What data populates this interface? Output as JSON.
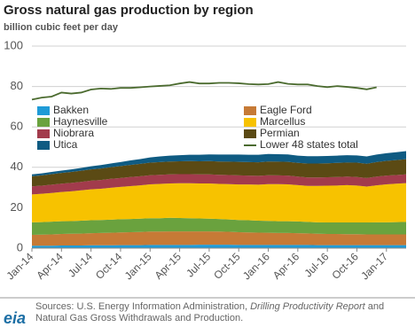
{
  "chart_data": {
    "type": "area",
    "title": "Gross natural gas production by region",
    "subtitle": "billion cubic feet per day",
    "categories": [
      "Jan-14",
      null,
      null,
      "Apr-14",
      null,
      null,
      "Jul-14",
      null,
      null,
      "Oct-14",
      null,
      null,
      "Jan-15",
      null,
      null,
      "Apr-15",
      null,
      null,
      "Jul-15",
      null,
      null,
      "Oct-15",
      null,
      null,
      "Jan-16",
      null,
      null,
      "Apr-16",
      null,
      null,
      "Jul-16",
      null,
      null,
      "Oct-16",
      null,
      null,
      "Jan-17",
      null,
      null
    ],
    "series": [
      {
        "name": "Bakken",
        "color": "#1f9bd7",
        "values": [
          1.2,
          1.2,
          1.2,
          1.3,
          1.3,
          1.3,
          1.4,
          1.4,
          1.4,
          1.5,
          1.5,
          1.5,
          1.6,
          1.6,
          1.6,
          1.6,
          1.6,
          1.7,
          1.7,
          1.7,
          1.7,
          1.6,
          1.6,
          1.6,
          1.6,
          1.6,
          1.6,
          1.6,
          1.6,
          1.5,
          1.5,
          1.5,
          1.5,
          1.5,
          1.5,
          1.5,
          1.5,
          1.5,
          1.5
        ]
      },
      {
        "name": "Eagle Ford",
        "color": "#c67a36",
        "values": [
          5.4,
          5.5,
          5.6,
          5.7,
          5.8,
          5.9,
          6.0,
          6.1,
          6.2,
          6.3,
          6.4,
          6.5,
          6.6,
          6.6,
          6.7,
          6.7,
          6.7,
          6.6,
          6.6,
          6.5,
          6.4,
          6.3,
          6.2,
          6.1,
          6.0,
          5.9,
          5.9,
          5.8,
          5.7,
          5.6,
          5.5,
          5.5,
          5.4,
          5.4,
          5.3,
          5.3,
          5.3,
          5.3,
          5.3
        ]
      },
      {
        "name": "Haynesville",
        "color": "#6aa23e",
        "values": [
          6.2,
          6.2,
          6.3,
          6.3,
          6.3,
          6.4,
          6.4,
          6.4,
          6.5,
          6.5,
          6.5,
          6.6,
          6.6,
          6.6,
          6.7,
          6.6,
          6.5,
          6.4,
          6.3,
          6.2,
          6.1,
          6.0,
          6.0,
          5.9,
          5.9,
          5.8,
          5.8,
          5.8,
          5.7,
          5.7,
          5.7,
          5.7,
          5.8,
          5.8,
          5.9,
          6.0,
          6.0,
          6.1,
          6.2
        ]
      },
      {
        "name": "Marcellus",
        "color": "#f7c200",
        "values": [
          13.8,
          14.0,
          14.2,
          14.5,
          14.7,
          15.0,
          15.3,
          15.5,
          15.8,
          16.0,
          16.3,
          16.5,
          16.8,
          17.0,
          17.0,
          17.2,
          17.3,
          17.3,
          17.4,
          17.4,
          17.5,
          17.6,
          17.7,
          17.8,
          18.2,
          18.4,
          18.3,
          18.0,
          17.8,
          18.0,
          18.2,
          18.3,
          18.5,
          18.3,
          17.8,
          18.3,
          18.8,
          19.0,
          19.2
        ]
      },
      {
        "name": "Niobrara",
        "color": "#a23b4c",
        "values": [
          4.0,
          4.0,
          4.1,
          4.1,
          4.2,
          4.2,
          4.3,
          4.3,
          4.4,
          4.4,
          4.5,
          4.5,
          4.5,
          4.5,
          4.5,
          4.5,
          4.5,
          4.5,
          4.5,
          4.5,
          4.5,
          4.5,
          4.4,
          4.4,
          4.4,
          4.3,
          4.3,
          4.2,
          4.2,
          4.2,
          4.2,
          4.2,
          4.2,
          4.2,
          4.2,
          4.3,
          4.3,
          4.3,
          4.3
        ]
      },
      {
        "name": "Permian",
        "color": "#5b4a14",
        "values": [
          5.0,
          5.1,
          5.2,
          5.3,
          5.4,
          5.5,
          5.6,
          5.7,
          5.8,
          5.9,
          6.0,
          6.1,
          6.2,
          6.3,
          6.4,
          6.4,
          6.5,
          6.5,
          6.6,
          6.6,
          6.6,
          6.7,
          6.7,
          6.7,
          6.8,
          6.8,
          6.8,
          6.8,
          6.9,
          6.9,
          6.9,
          7.0,
          7.0,
          7.1,
          7.1,
          7.2,
          7.3,
          7.4,
          7.5
        ]
      },
      {
        "name": "Utica",
        "color": "#0f5b82",
        "values": [
          0.9,
          1.0,
          1.1,
          1.2,
          1.3,
          1.4,
          1.5,
          1.7,
          1.8,
          2.0,
          2.2,
          2.4,
          2.6,
          2.8,
          2.9,
          3.0,
          3.1,
          3.2,
          3.3,
          3.4,
          3.5,
          3.6,
          3.6,
          3.7,
          3.7,
          3.7,
          3.7,
          3.6,
          3.6,
          3.6,
          3.6,
          3.6,
          3.6,
          3.6,
          3.6,
          3.7,
          3.8,
          3.9,
          4.0
        ]
      },
      {
        "name": "Lower 48 states total",
        "color": "#4b6b2f",
        "type": "line",
        "values": [
          73.5,
          74.5,
          75.0,
          77.0,
          76.5,
          77.0,
          78.5,
          79.0,
          78.8,
          79.3,
          79.3,
          79.6,
          80.0,
          80.3,
          80.6,
          81.5,
          82.2,
          81.5,
          81.5,
          81.8,
          81.8,
          81.6,
          81.2,
          81.0,
          81.2,
          82.2,
          81.3,
          81.0,
          81.0,
          80.2,
          79.7,
          80.2,
          79.8,
          79.3,
          78.6,
          79.6,
          null,
          null,
          null
        ]
      }
    ],
    "ylim": [
      0,
      100
    ],
    "yticks": [
      0,
      20,
      40,
      60,
      80,
      100
    ],
    "grid": true,
    "source": [
      "Sources: U.S. Energy Information Administration, ",
      "Drilling Productivity Report",
      " and Natural Gas Gross Withdrawals and Production."
    ],
    "logo": "eia"
  }
}
